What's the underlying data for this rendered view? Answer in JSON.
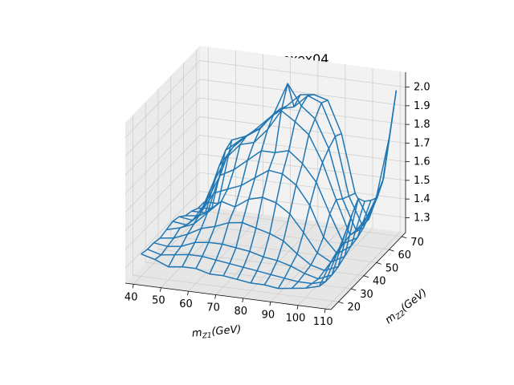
{
  "chart_data": {
    "type": "surface-wireframe",
    "title": "k-factor ppeeexex04",
    "xlabel": "m_{Z1}(GeV)",
    "ylabel": "m_{Z2}(GeV)",
    "x_ticks": [
      "40",
      "50",
      "60",
      "70",
      "80",
      "90",
      "100",
      "110"
    ],
    "y_ticks": [
      "20",
      "30",
      "40",
      "50",
      "60",
      "70"
    ],
    "z_ticks": [
      "1.3",
      "1.4",
      "1.5",
      "1.6",
      "1.7",
      "1.8",
      "1.9",
      "2.0"
    ],
    "xlim": [
      37,
      112
    ],
    "ylim": [
      14,
      73
    ],
    "zlim": [
      1.22,
      2.08
    ],
    "line_color": "#1f77b4",
    "grid": true,
    "mz1_values": [
      40,
      45,
      50,
      55,
      60,
      65,
      70,
      75,
      80,
      85,
      90,
      95,
      100,
      105,
      110
    ],
    "mz2_values": [
      20,
      25,
      30,
      35,
      40,
      45,
      50,
      55,
      60,
      65,
      70
    ],
    "k_factor": [
      [
        1.34,
        1.33,
        1.33,
        1.32,
        1.33,
        1.34,
        1.33,
        1.3,
        1.29,
        1.27,
        1.27
      ],
      [
        1.32,
        1.31,
        1.32,
        1.33,
        1.35,
        1.33,
        1.32,
        1.31,
        1.29,
        1.28,
        1.27
      ],
      [
        1.29,
        1.32,
        1.33,
        1.36,
        1.38,
        1.4,
        1.43,
        1.49,
        1.55,
        1.6,
        1.62
      ],
      [
        1.3,
        1.33,
        1.36,
        1.4,
        1.45,
        1.52,
        1.58,
        1.64,
        1.66,
        1.66,
        1.65
      ],
      [
        1.3,
        1.33,
        1.37,
        1.42,
        1.52,
        1.55,
        1.62,
        1.72,
        1.73,
        1.72,
        1.7
      ],
      [
        1.28,
        1.32,
        1.37,
        1.45,
        1.5,
        1.58,
        1.68,
        1.74,
        1.78,
        1.79,
        1.78
      ],
      [
        1.28,
        1.31,
        1.36,
        1.46,
        1.55,
        1.63,
        1.74,
        1.82,
        1.87,
        1.86,
        1.84
      ],
      [
        1.27,
        1.3,
        1.35,
        1.44,
        1.57,
        1.68,
        1.74,
        1.93,
        2.04,
        1.88,
        1.91
      ],
      [
        1.26,
        1.29,
        1.33,
        1.42,
        1.55,
        1.67,
        1.76,
        1.88,
        1.93,
        1.95,
        1.92
      ],
      [
        1.26,
        1.28,
        1.32,
        1.39,
        1.5,
        1.62,
        1.7,
        1.82,
        1.87,
        1.92,
        1.9
      ],
      [
        1.25,
        1.27,
        1.3,
        1.33,
        1.41,
        1.52,
        1.61,
        1.68,
        1.72,
        1.75,
        1.73
      ],
      [
        1.26,
        1.26,
        1.27,
        1.28,
        1.31,
        1.36,
        1.45,
        1.49,
        1.46,
        1.44,
        1.42
      ],
      [
        1.27,
        1.26,
        1.25,
        1.26,
        1.27,
        1.28,
        1.3,
        1.31,
        1.3,
        1.29,
        1.29
      ],
      [
        1.29,
        1.28,
        1.28,
        1.29,
        1.31,
        1.33,
        1.34,
        1.36,
        1.4,
        1.45,
        1.5
      ],
      [
        1.45,
        1.47,
        1.52,
        1.58,
        1.63,
        1.58,
        1.55,
        1.53,
        1.6,
        1.8,
        2.0
      ]
    ]
  }
}
